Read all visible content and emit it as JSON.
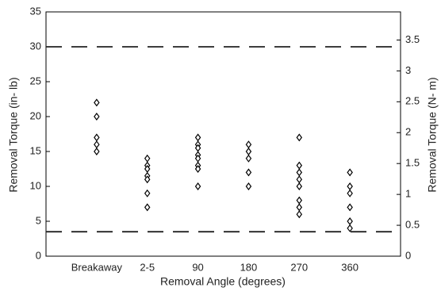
{
  "chart_data": {
    "type": "scatter",
    "x_label": "Removal Angle (degrees)",
    "y_label": "Removal Torque (in- lb)",
    "y2_label": "Removal Torque (N- m)",
    "categories": [
      "Breakaway",
      "2-5",
      "90",
      "180",
      "270",
      "360"
    ],
    "values": [
      [
        22,
        20,
        17,
        16,
        15
      ],
      [
        14,
        13,
        12.5,
        11.5,
        11,
        9,
        7
      ],
      [
        17,
        16,
        15.5,
        14.5,
        14,
        13,
        12.5,
        10
      ],
      [
        16,
        15,
        14,
        12,
        10
      ],
      [
        17,
        13,
        12,
        11,
        10,
        8,
        7,
        6
      ],
      [
        12,
        10,
        9,
        7,
        5,
        4
      ]
    ],
    "color": "#000000",
    "ylim": [
      0,
      35
    ],
    "yticks": [
      0,
      5,
      10,
      15,
      20,
      25,
      30,
      35
    ],
    "y2lim": [
      0,
      3.955
    ],
    "y2ticks": [
      0,
      0.5,
      1,
      1.5,
      2,
      2.5,
      3,
      3.5
    ],
    "reference_lines": [
      30,
      3.5
    ]
  }
}
